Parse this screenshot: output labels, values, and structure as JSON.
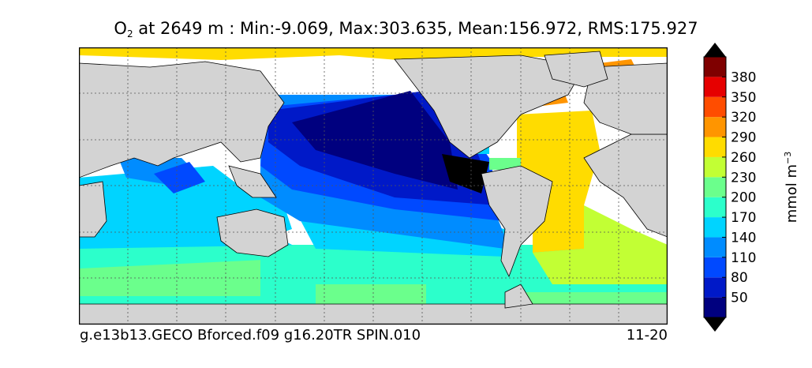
{
  "title": {
    "variable": "O",
    "variable_subscript": "2",
    "rest": " at 2649 m : Min:-9.069, Max:303.635, Mean:156.972, RMS:175.927"
  },
  "footer": {
    "case_name": "g.e13b13.GECO Bforced.f09 g16.20TR SPIN.010",
    "date_range": "11-20"
  },
  "colorbar": {
    "label_main": "mmol m",
    "label_exp": "−3",
    "ticks": [
      "50",
      "80",
      "110",
      "140",
      "170",
      "200",
      "230",
      "260",
      "290",
      "320",
      "350",
      "380"
    ],
    "colors": [
      "#00007f",
      "#0019c8",
      "#0049ff",
      "#008cff",
      "#00d4ff",
      "#2cffcb",
      "#6bff8c",
      "#c2ff34",
      "#ffdc00",
      "#ff9500",
      "#ff4d00",
      "#e60000",
      "#7f0000"
    ]
  },
  "map": {
    "land_color": "#d3d3d3",
    "ocean_missing_color": "#ffffff"
  }
}
